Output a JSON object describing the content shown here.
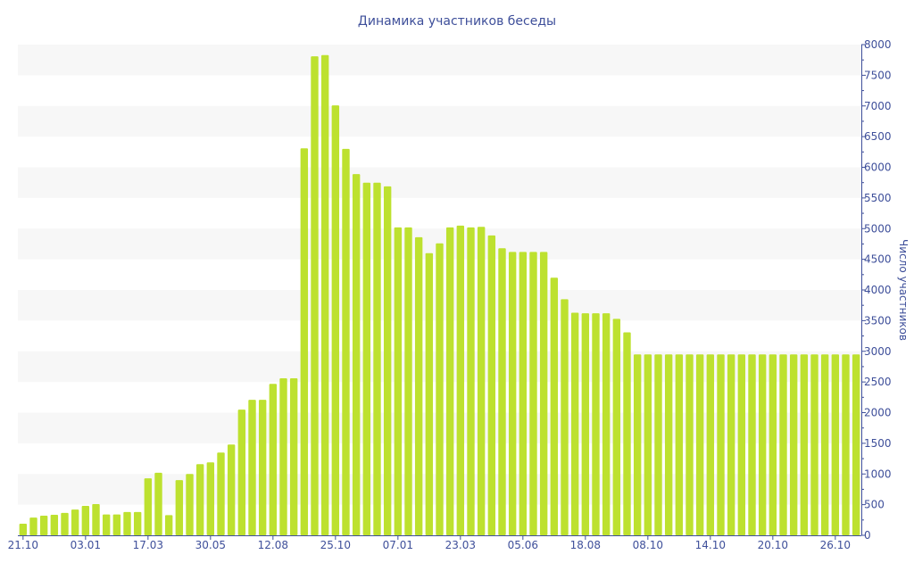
{
  "chart_data": {
    "type": "bar",
    "title": "Динамика участников беседы",
    "xlabel": "",
    "ylabel": "Число участников",
    "ylim": [
      0,
      8000
    ],
    "yticks": [
      0,
      500,
      1000,
      1500,
      2000,
      2500,
      3000,
      3500,
      4000,
      4500,
      5000,
      5500,
      6000,
      6500,
      7000,
      7500,
      8000
    ],
    "xtick_labels": [
      {
        "index": 0,
        "label": "21.10"
      },
      {
        "index": 6,
        "label": "03.01"
      },
      {
        "index": 12,
        "label": "17.03"
      },
      {
        "index": 18,
        "label": "30.05"
      },
      {
        "index": 24,
        "label": "12.08"
      },
      {
        "index": 30,
        "label": "25.10"
      },
      {
        "index": 36,
        "label": "07.01"
      },
      {
        "index": 42,
        "label": "23.03"
      },
      {
        "index": 48,
        "label": "05.06"
      },
      {
        "index": 54,
        "label": "18.08"
      },
      {
        "index": 60,
        "label": "08.10"
      },
      {
        "index": 66,
        "label": "14.10"
      },
      {
        "index": 72,
        "label": "20.10"
      },
      {
        "index": 78,
        "label": "26.10"
      }
    ],
    "values": [
      190,
      290,
      320,
      335,
      365,
      420,
      480,
      510,
      340,
      340,
      380,
      380,
      930,
      1020,
      330,
      900,
      1000,
      1160,
      1190,
      1350,
      1480,
      2050,
      2210,
      2210,
      2470,
      2560,
      2560,
      6310,
      7810,
      7830,
      7010,
      6300,
      5890,
      5750,
      5750,
      5690,
      5020,
      5020,
      4860,
      4600,
      4760,
      5020,
      5050,
      5020,
      5030,
      4890,
      4680,
      4620,
      4620,
      4620,
      4620,
      4200,
      3850,
      3630,
      3620,
      3620,
      3620,
      3530,
      3310,
      2950,
      2950,
      2950,
      2950,
      2950,
      2950,
      2950,
      2950,
      2950,
      2950,
      2950,
      2950,
      2950,
      2950,
      2950,
      2950,
      2950,
      2950,
      2950,
      2950,
      2950,
      2950
    ],
    "grid": "alternating horizontal bands",
    "colors": {
      "bar": "#bde12f",
      "axis": "#3e4f9a",
      "band": "#f7f7f7"
    }
  }
}
